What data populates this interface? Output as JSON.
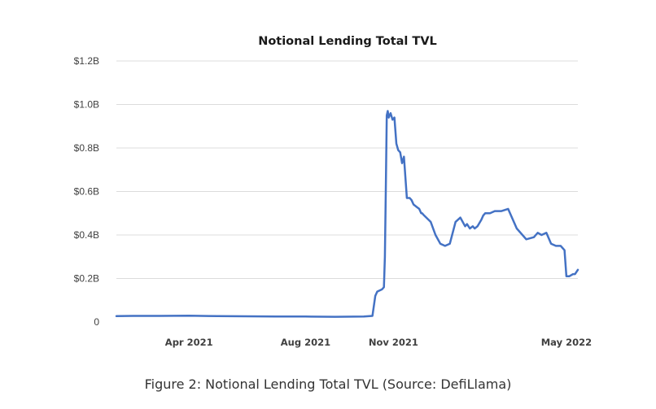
{
  "chart_data": {
    "type": "line",
    "title": "Notional Lending Total TVL",
    "xlabel": "",
    "ylabel": "",
    "ylim": [
      0,
      1.2
    ],
    "y_ticks": [
      0,
      0.2,
      0.4,
      0.6,
      0.8,
      1.0,
      1.2
    ],
    "y_tick_labels": [
      "0",
      "$0.2B",
      "$0.4B",
      "$0.6B",
      "$0.8B",
      "$1.0B",
      "$1.2B"
    ],
    "x_range": [
      "2021-01-15",
      "2022-05-13"
    ],
    "x_ticks": [
      "2021-04-01",
      "2021-08-01",
      "2021-11-01",
      "2022-05-01"
    ],
    "x_tick_labels": [
      "Apr 2021",
      "Aug 2021",
      "Nov 2021",
      "May 2022"
    ],
    "grid": "horizontal",
    "legend": "none",
    "line_color": "#4472c4",
    "series": [
      {
        "x": [
          "2021-01-15",
          "2021-02-01",
          "2021-03-01",
          "2021-04-01",
          "2021-05-01",
          "2021-06-01",
          "2021-07-01",
          "2021-08-01",
          "2021-09-01",
          "2021-10-01",
          "2021-10-10",
          "2021-10-13",
          "2021-10-15",
          "2021-10-20",
          "2021-10-22",
          "2021-10-23",
          "2021-10-24",
          "2021-10-25",
          "2021-10-26",
          "2021-10-27",
          "2021-10-29",
          "2021-10-31",
          "2021-11-02",
          "2021-11-04",
          "2021-11-06",
          "2021-11-08",
          "2021-11-10",
          "2021-11-12",
          "2021-11-15",
          "2021-11-18",
          "2021-11-20",
          "2021-11-22",
          "2021-11-25",
          "2021-11-28",
          "2021-11-30",
          "2021-12-01",
          "2021-12-03",
          "2021-12-10",
          "2021-12-15",
          "2021-12-20",
          "2021-12-25",
          "2021-12-30",
          "2022-01-05",
          "2022-01-10",
          "2022-01-15",
          "2022-01-17",
          "2022-01-20",
          "2022-01-23",
          "2022-01-25",
          "2022-01-28",
          "2022-02-01",
          "2022-02-03",
          "2022-02-05",
          "2022-02-10",
          "2022-02-15",
          "2022-02-18",
          "2022-02-22",
          "2022-03-01",
          "2022-03-10",
          "2022-03-20",
          "2022-03-28",
          "2022-03-30",
          "2022-04-01",
          "2022-04-05",
          "2022-04-10",
          "2022-04-15",
          "2022-04-20",
          "2022-04-25",
          "2022-04-27",
          "2022-04-29",
          "2022-05-01",
          "2022-05-04",
          "2022-05-08",
          "2022-05-10",
          "2022-05-13"
        ],
        "y": [
          0.027,
          0.028,
          0.028,
          0.029,
          0.027,
          0.026,
          0.025,
          0.025,
          0.024,
          0.025,
          0.028,
          0.12,
          0.14,
          0.15,
          0.16,
          0.3,
          0.6,
          0.95,
          0.97,
          0.94,
          0.96,
          0.93,
          0.94,
          0.82,
          0.79,
          0.78,
          0.73,
          0.76,
          0.57,
          0.57,
          0.56,
          0.54,
          0.53,
          0.52,
          0.5,
          0.5,
          0.49,
          0.46,
          0.4,
          0.36,
          0.35,
          0.36,
          0.46,
          0.48,
          0.44,
          0.45,
          0.43,
          0.44,
          0.43,
          0.44,
          0.47,
          0.49,
          0.5,
          0.5,
          0.51,
          0.51,
          0.51,
          0.52,
          0.43,
          0.38,
          0.39,
          0.4,
          0.41,
          0.4,
          0.41,
          0.36,
          0.35,
          0.35,
          0.34,
          0.33,
          0.21,
          0.21,
          0.22,
          0.22,
          0.24
        ]
      }
    ]
  },
  "caption": "Figure 2: Notional Lending Total TVL (Source: DefiLlama)"
}
